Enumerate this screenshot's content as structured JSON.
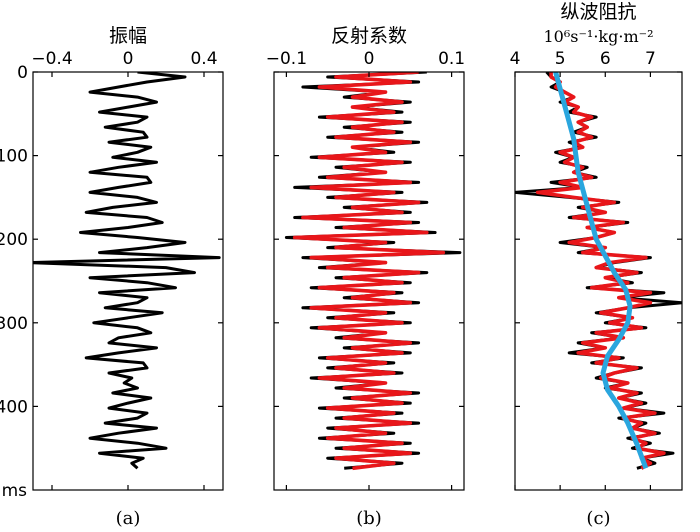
{
  "chart_data": [
    {
      "type": "line",
      "title": "振幅",
      "panel_label": "(a)",
      "x_ticks": [
        "−0.4",
        "0",
        "0.4"
      ],
      "x_tick_values": [
        -0.4,
        0,
        0.4
      ],
      "xlim": [
        -0.5,
        0.5
      ],
      "y_ticks": [
        "0",
        "100",
        "200",
        "300",
        "400"
      ],
      "y_tick_values": [
        0,
        100,
        200,
        300,
        400
      ],
      "y_unit": "ms",
      "ylim": [
        0,
        500
      ],
      "y_inverted": true,
      "series": [
        {
          "color": "#000000",
          "x": [
            0.05,
            0.3,
            0.1,
            -0.05,
            -0.2,
            0.05,
            0.15,
            0.0,
            -0.15,
            0.1,
            0.05,
            -0.12,
            0.08,
            0.1,
            -0.1,
            0.12,
            0.05,
            -0.08,
            0.15,
            -0.05,
            -0.2,
            0.1,
            0.12,
            -0.05,
            -0.2,
            0.05,
            0.15,
            -0.08,
            -0.22,
            0.1,
            0.18,
            0.0,
            -0.25,
            0.05,
            0.3,
            0.1,
            -0.15,
            0.48,
            -0.52,
            0.2,
            0.35,
            -0.2,
            0.1,
            0.25,
            -0.15,
            0.1,
            0.05,
            -0.12,
            0.18,
            0.0,
            -0.18,
            0.05,
            0.12,
            -0.05,
            -0.1,
            0.15,
            -0.05,
            -0.22,
            0.08,
            0.1,
            -0.1,
            0.02,
            -0.02,
            0.05,
            -0.08,
            0.12,
            0.0,
            -0.1,
            0.1,
            0.05,
            -0.12,
            0.15,
            -0.05,
            -0.2,
            0.05,
            0.2,
            -0.15,
            0.08,
            0.02,
            0.05
          ],
          "y": [
            0,
            6,
            12,
            18,
            24,
            30,
            36,
            42,
            48,
            54,
            60,
            66,
            72,
            78,
            84,
            90,
            96,
            102,
            108,
            114,
            120,
            126,
            132,
            138,
            144,
            150,
            156,
            162,
            168,
            174,
            180,
            186,
            192,
            198,
            204,
            210,
            216,
            222,
            228,
            234,
            240,
            246,
            252,
            258,
            264,
            270,
            276,
            282,
            288,
            294,
            300,
            306,
            312,
            318,
            324,
            330,
            336,
            342,
            348,
            354,
            360,
            366,
            372,
            378,
            384,
            390,
            396,
            402,
            408,
            414,
            420,
            426,
            432,
            438,
            444,
            450,
            456,
            462,
            468,
            474
          ]
        }
      ]
    },
    {
      "type": "line",
      "title": "反射系数",
      "panel_label": "(b)",
      "x_ticks": [
        "−0.1",
        "0",
        "0.1"
      ],
      "x_tick_values": [
        -0.1,
        0,
        0.1
      ],
      "xlim": [
        -0.115,
        0.115
      ],
      "y_ticks": [
        "0",
        "100",
        "200",
        "300",
        "400"
      ],
      "y_tick_values": [
        0,
        100,
        200,
        300,
        400
      ],
      "y_unit": "ms",
      "ylim": [
        0,
        500
      ],
      "y_inverted": true,
      "series": [
        {
          "color": "#000000",
          "x": [
            0.07,
            -0.05,
            0.06,
            -0.08,
            0.02,
            -0.03,
            0.05,
            -0.02,
            0.04,
            -0.06,
            0.05,
            -0.03,
            0.04,
            -0.05,
            0.06,
            -0.02,
            0.03,
            -0.07,
            0.05,
            -0.04,
            0.02,
            -0.06,
            0.06,
            -0.09,
            0.04,
            -0.05,
            0.07,
            -0.03,
            0.05,
            -0.09,
            0.06,
            -0.04,
            0.08,
            -0.1,
            0.03,
            -0.05,
            0.11,
            -0.08,
            0.02,
            -0.06,
            0.07,
            -0.04,
            0.05,
            -0.07,
            0.04,
            -0.03,
            0.06,
            -0.08,
            0.03,
            -0.05,
            0.05,
            -0.07,
            0.02,
            -0.04,
            0.06,
            -0.03,
            0.05,
            -0.06,
            0.03,
            -0.05,
            0.04,
            -0.07,
            0.02,
            -0.04,
            0.06,
            -0.03,
            0.05,
            -0.06,
            0.04,
            -0.04,
            0.06,
            -0.05,
            0.03,
            -0.06,
            0.05,
            -0.04,
            0.06,
            -0.05,
            0.04,
            -0.03
          ],
          "y": [
            0,
            6,
            12,
            18,
            24,
            30,
            36,
            42,
            48,
            54,
            60,
            66,
            72,
            78,
            84,
            90,
            96,
            102,
            108,
            114,
            120,
            126,
            132,
            138,
            144,
            150,
            156,
            162,
            168,
            174,
            180,
            186,
            192,
            198,
            204,
            210,
            216,
            222,
            228,
            234,
            240,
            246,
            252,
            258,
            264,
            270,
            276,
            282,
            288,
            294,
            300,
            306,
            312,
            318,
            324,
            330,
            336,
            342,
            348,
            354,
            360,
            366,
            372,
            378,
            384,
            390,
            396,
            402,
            408,
            414,
            420,
            426,
            432,
            438,
            444,
            450,
            456,
            462,
            468,
            474
          ]
        },
        {
          "color": "#e8161a",
          "x": [
            0.06,
            -0.04,
            0.05,
            -0.06,
            0.02,
            -0.02,
            0.04,
            -0.02,
            0.03,
            -0.05,
            0.04,
            -0.02,
            0.03,
            -0.04,
            0.05,
            -0.02,
            0.02,
            -0.06,
            0.04,
            -0.03,
            0.02,
            -0.05,
            0.05,
            -0.07,
            0.03,
            -0.04,
            0.06,
            -0.02,
            0.04,
            -0.08,
            0.05,
            -0.03,
            0.07,
            -0.09,
            0.02,
            -0.04,
            0.09,
            -0.07,
            0.02,
            -0.05,
            0.06,
            -0.03,
            0.04,
            -0.06,
            0.03,
            -0.02,
            0.05,
            -0.07,
            0.02,
            -0.04,
            0.04,
            -0.06,
            0.02,
            -0.03,
            0.05,
            -0.02,
            0.04,
            -0.05,
            0.02,
            -0.04,
            0.03,
            -0.06,
            0.02,
            -0.03,
            0.05,
            -0.02,
            0.04,
            -0.05,
            0.03,
            -0.03,
            0.05,
            -0.04,
            0.02,
            -0.05,
            0.04,
            -0.03,
            0.05,
            -0.04,
            0.03,
            -0.02
          ],
          "y": [
            0,
            6,
            12,
            18,
            24,
            30,
            36,
            42,
            48,
            54,
            60,
            66,
            72,
            78,
            84,
            90,
            96,
            102,
            108,
            114,
            120,
            126,
            132,
            138,
            144,
            150,
            156,
            162,
            168,
            174,
            180,
            186,
            192,
            198,
            204,
            210,
            216,
            222,
            228,
            234,
            240,
            246,
            252,
            258,
            264,
            270,
            276,
            282,
            288,
            294,
            300,
            306,
            312,
            318,
            324,
            330,
            336,
            342,
            348,
            354,
            360,
            366,
            372,
            378,
            384,
            390,
            396,
            402,
            408,
            414,
            420,
            426,
            432,
            438,
            444,
            450,
            456,
            462,
            468,
            474
          ]
        }
      ]
    },
    {
      "type": "line",
      "title": "纵波阻抗",
      "unit_text": "10⁶s⁻¹·kg·m⁻²",
      "panel_label": "(c)",
      "x_ticks": [
        "4",
        "5",
        "6",
        "7"
      ],
      "x_tick_values": [
        4,
        5,
        6,
        7
      ],
      "xlim": [
        4,
        7.7
      ],
      "y_ticks": [
        "0",
        "100",
        "200",
        "300",
        "400"
      ],
      "y_tick_values": [
        0,
        100,
        200,
        300,
        400
      ],
      "y_unit": "ms",
      "ylim": [
        0,
        500
      ],
      "y_inverted": true,
      "series": [
        {
          "color": "#000000",
          "x": [
            4.7,
            4.8,
            5.0,
            4.8,
            5.1,
            5.3,
            5.0,
            5.4,
            5.2,
            5.8,
            5.4,
            5.6,
            5.3,
            5.8,
            5.2,
            5.5,
            4.9,
            5.3,
            5.0,
            5.6,
            5.3,
            5.8,
            4.8,
            5.5,
            4.0,
            5.2,
            6.3,
            5.4,
            6.0,
            5.2,
            6.5,
            5.6,
            6.2,
            5.8,
            5.0,
            6.0,
            5.4,
            7.0,
            6.2,
            5.8,
            6.8,
            6.0,
            6.6,
            5.6,
            7.3,
            6.3,
            7.7,
            6.5,
            5.8,
            6.6,
            6.0,
            6.9,
            5.7,
            6.4,
            5.4,
            6.0,
            5.2,
            6.4,
            5.7,
            6.8,
            6.2,
            5.8,
            6.5,
            6.0,
            6.8,
            6.3,
            6.9,
            6.4,
            7.3,
            6.3,
            6.9,
            6.6,
            7.2,
            6.5,
            7.0,
            6.6,
            7.5,
            6.8,
            7.1,
            6.7
          ],
          "y": [
            0,
            6,
            12,
            18,
            24,
            30,
            36,
            42,
            48,
            54,
            60,
            66,
            72,
            78,
            84,
            90,
            96,
            102,
            108,
            114,
            120,
            126,
            132,
            138,
            144,
            150,
            156,
            162,
            168,
            174,
            180,
            186,
            192,
            198,
            204,
            210,
            216,
            222,
            228,
            234,
            240,
            246,
            252,
            258,
            264,
            270,
            276,
            282,
            288,
            294,
            300,
            306,
            312,
            318,
            324,
            330,
            336,
            342,
            348,
            354,
            360,
            366,
            372,
            378,
            384,
            390,
            396,
            402,
            408,
            414,
            420,
            426,
            432,
            438,
            444,
            450,
            456,
            462,
            468,
            474
          ]
        },
        {
          "color": "#e8161a",
          "x": [
            4.8,
            4.8,
            5.0,
            4.9,
            5.1,
            5.3,
            5.1,
            5.4,
            5.3,
            5.7,
            5.4,
            5.6,
            5.4,
            5.7,
            5.3,
            5.5,
            5.0,
            5.3,
            5.1,
            5.5,
            5.3,
            5.7,
            5.0,
            5.5,
            4.5,
            5.3,
            6.2,
            5.5,
            6.0,
            5.3,
            6.4,
            5.6,
            6.2,
            5.8,
            5.2,
            6.0,
            5.5,
            6.9,
            6.1,
            5.8,
            6.7,
            6.0,
            6.5,
            5.7,
            7.0,
            6.3,
            7.0,
            6.5,
            5.9,
            6.6,
            6.1,
            6.8,
            5.8,
            6.4,
            5.5,
            6.0,
            5.4,
            6.3,
            5.8,
            6.7,
            6.2,
            5.9,
            6.5,
            6.1,
            6.7,
            6.3,
            6.8,
            6.4,
            7.1,
            6.4,
            6.8,
            6.6,
            7.1,
            6.6,
            6.9,
            6.7,
            7.3,
            6.8,
            7.0,
            6.8
          ],
          "y": [
            0,
            6,
            12,
            18,
            24,
            30,
            36,
            42,
            48,
            54,
            60,
            66,
            72,
            78,
            84,
            90,
            96,
            102,
            108,
            114,
            120,
            126,
            132,
            138,
            144,
            150,
            156,
            162,
            168,
            174,
            180,
            186,
            192,
            198,
            204,
            210,
            216,
            222,
            228,
            234,
            240,
            246,
            252,
            258,
            264,
            270,
            276,
            282,
            288,
            294,
            300,
            306,
            312,
            318,
            324,
            330,
            336,
            342,
            348,
            354,
            360,
            366,
            372,
            378,
            384,
            390,
            396,
            402,
            408,
            414,
            420,
            426,
            432,
            438,
            444,
            450,
            456,
            462,
            468,
            474
          ]
        },
        {
          "color": "#2aa6de",
          "x": [
            4.9,
            5.0,
            5.1,
            5.2,
            5.3,
            5.35,
            5.4,
            5.5,
            5.6,
            5.7,
            5.8,
            6.0,
            6.2,
            6.45,
            6.55,
            6.5,
            6.3,
            6.05,
            5.95,
            6.05,
            6.3,
            6.5,
            6.7,
            6.9
          ],
          "y": [
            0,
            20,
            40,
            60,
            80,
            100,
            120,
            140,
            160,
            180,
            200,
            220,
            240,
            260,
            280,
            300,
            320,
            340,
            360,
            380,
            400,
            420,
            445,
            474
          ]
        }
      ]
    }
  ]
}
